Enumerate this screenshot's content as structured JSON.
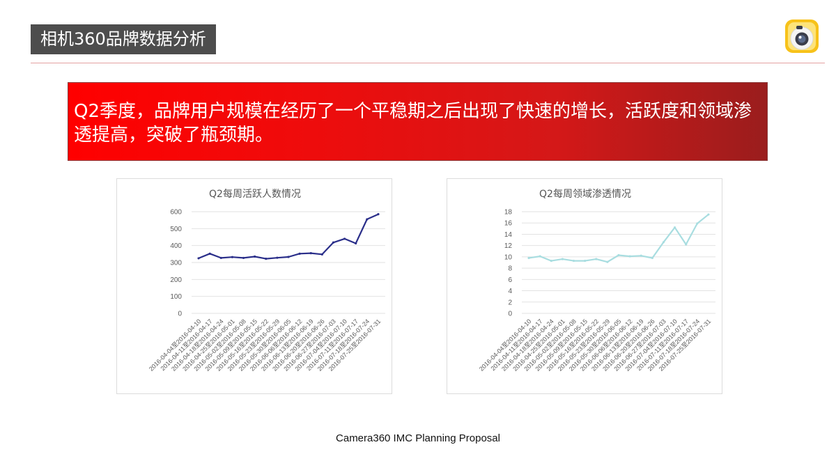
{
  "header": {
    "title": "相机360品牌数据分析"
  },
  "banner": {
    "text": "Q2季度，品牌用户规模在经历了一个平稳期之后出现了快速的增长，活跃度和领域渗透提高，突破了瓶颈期。"
  },
  "footer": {
    "text": "Camera360 IMC Planning Proposal"
  },
  "chart_data": [
    {
      "type": "line",
      "title": "Q2每周活跃人数情况",
      "xlabel": "",
      "ylabel": "",
      "ylim": [
        0,
        600
      ],
      "yticks": [
        0,
        100,
        200,
        300,
        400,
        500,
        600
      ],
      "categories": [
        "2016-04-04至2016-04-10",
        "2016-04-11至2016-04-17",
        "2016-04-18至2016-04-24",
        "2016-04-25至2016-05-01",
        "2016-05-02至2016-05-08",
        "2016-05-09至2016-05-15",
        "2016-05-16至2016-05-22",
        "2016-05-23至2016-05-29",
        "2016-05-30至2016-06-05",
        "2016-06-06至2016-06-12",
        "2016-06-13至2016-06-19",
        "2016-06-20至2016-06-26",
        "2016-06-27至2016-07-03",
        "2016-07-04至2016-07-10",
        "2016-07-11至2016-07-17",
        "2016-07-18至2016-07-24",
        "2016-07-25至2016-07-31"
      ],
      "values": [
        325,
        352,
        327,
        332,
        327,
        335,
        322,
        328,
        333,
        352,
        355,
        348,
        418,
        440,
        413,
        555,
        585
      ],
      "color": "#2b2f8a",
      "grid": true
    },
    {
      "type": "line",
      "title": "Q2每周领域渗透情况",
      "xlabel": "",
      "ylabel": "",
      "ylim": [
        0,
        18
      ],
      "yticks": [
        0,
        2,
        4,
        6,
        8,
        10,
        12,
        14,
        16,
        18
      ],
      "categories": [
        "2016-04-04至2016-04-10",
        "2016-04-11至2016-04-17",
        "2016-04-18至2016-04-24",
        "2016-04-25至2016-05-01",
        "2016-05-02至2016-05-08",
        "2016-05-09至2016-05-15",
        "2016-05-16至2016-05-22",
        "2016-05-23至2016-05-29",
        "2016-05-30至2016-06-05",
        "2016-06-06至2016-06-12",
        "2016-06-13至2016-06-19",
        "2016-06-20至2016-06-26",
        "2016-06-27至2016-07-03",
        "2016-07-04至2016-07-10",
        "2016-07-11至2016-07-17",
        "2016-07-18至2016-07-24",
        "2016-07-25至2016-07-31"
      ],
      "values": [
        9.8,
        10.1,
        9.3,
        9.6,
        9.3,
        9.3,
        9.6,
        9.1,
        10.3,
        10.1,
        10.2,
        9.8,
        12.6,
        15.2,
        12.2,
        15.9,
        17.5
      ],
      "color": "#a8dde0",
      "grid": true
    }
  ]
}
